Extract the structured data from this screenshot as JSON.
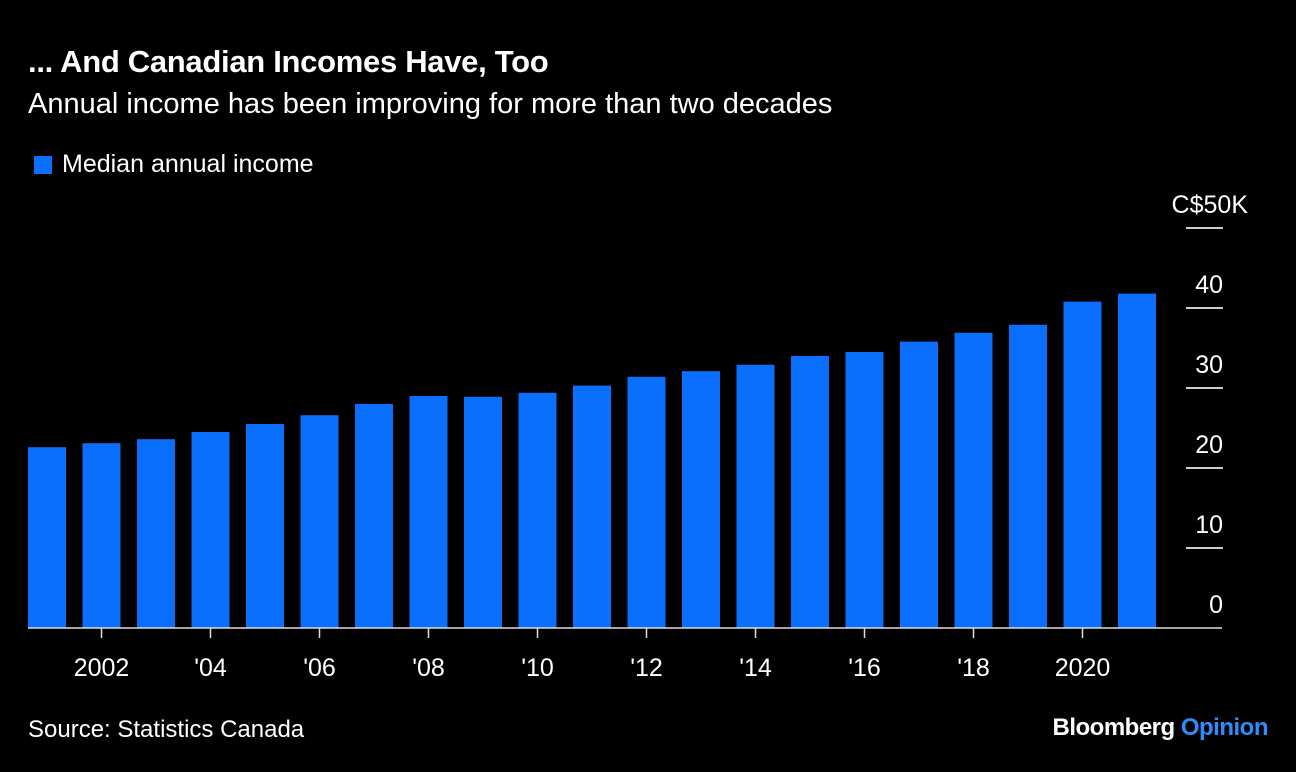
{
  "chart_data": {
    "type": "bar",
    "title": "... And Canadian Incomes Have, Too",
    "subtitle": "Annual income has been improving for more than two decades",
    "source": "Source: Statistics Canada",
    "legend": [
      {
        "name": "Median annual income",
        "color": "#0a6ffc"
      }
    ],
    "legend_placement": "top-left",
    "categories": [
      2001,
      2002,
      2003,
      2004,
      2005,
      2006,
      2007,
      2008,
      2009,
      2010,
      2011,
      2012,
      2013,
      2014,
      2015,
      2016,
      2017,
      2018,
      2019,
      2020,
      2021
    ],
    "series": [
      {
        "name": "Median annual income",
        "values": [
          22.6,
          23.1,
          23.6,
          24.5,
          25.5,
          26.6,
          28.0,
          29.0,
          28.9,
          29.4,
          30.3,
          31.4,
          32.1,
          32.9,
          34.0,
          34.5,
          35.8,
          36.9,
          37.9,
          40.8,
          41.8
        ]
      }
    ],
    "ylim": [
      0,
      50
    ],
    "yticks": [
      {
        "value": 0,
        "label": "0"
      },
      {
        "value": 10,
        "label": "10"
      },
      {
        "value": 20,
        "label": "20"
      },
      {
        "value": 30,
        "label": "30"
      },
      {
        "value": 40,
        "label": "40"
      },
      {
        "value": 50,
        "label": "C$50K"
      }
    ],
    "xticks": [
      {
        "value": 2002,
        "label": "2002"
      },
      {
        "value": 2004,
        "label": "'04"
      },
      {
        "value": 2006,
        "label": "'06"
      },
      {
        "value": 2008,
        "label": "'08"
      },
      {
        "value": 2010,
        "label": "'10"
      },
      {
        "value": 2012,
        "label": "'12"
      },
      {
        "value": 2014,
        "label": "'14"
      },
      {
        "value": 2016,
        "label": "'16"
      },
      {
        "value": 2018,
        "label": "'18"
      },
      {
        "value": 2020,
        "label": "2020"
      }
    ],
    "y_axis_side": "right",
    "grid": false
  },
  "branding": {
    "part1": "Bloomberg",
    "part2": "Opinion",
    "accent": "#2f8cff"
  }
}
